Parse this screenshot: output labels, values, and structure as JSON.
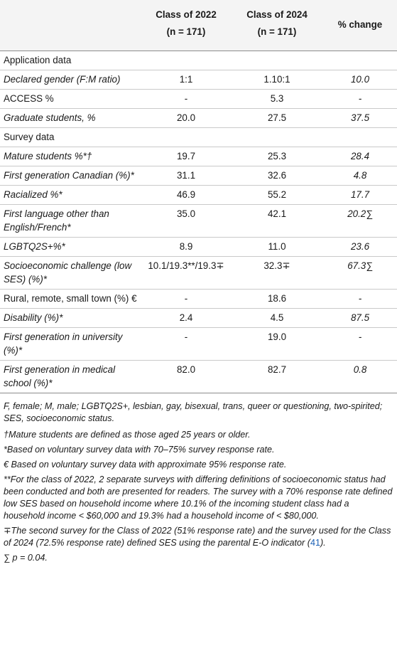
{
  "header": {
    "col1": "",
    "col2_title": "Class of 2022",
    "col2_n": "(n = 171)",
    "col3_title": "Class of 2024",
    "col3_n": "(n = 171)",
    "col4_title": "% change"
  },
  "rows": [
    {
      "label": "Application data",
      "italic": false,
      "v1": "",
      "v2": "",
      "v3": ""
    },
    {
      "label": "Declared gender (F:M ratio)",
      "italic": true,
      "v1": "1:1",
      "v2": "1.10:1",
      "v3": "10.0"
    },
    {
      "label": "ACCESS %",
      "italic": false,
      "v1": "-",
      "v2": "5.3",
      "v3": "-"
    },
    {
      "label": "Graduate students, %",
      "italic": true,
      "v1": "20.0",
      "v2": "27.5",
      "v3": "37.5"
    },
    {
      "label": "Survey data",
      "italic": false,
      "v1": "",
      "v2": "",
      "v3": ""
    },
    {
      "label": "Mature students %*†",
      "italic": true,
      "v1": "19.7",
      "v2": "25.3",
      "v3": "28.4"
    },
    {
      "label": "First generation Canadian (%)*",
      "italic": true,
      "v1": "31.1",
      "v2": "32.6",
      "v3": "4.8"
    },
    {
      "label": "Racialized %*",
      "italic": true,
      "v1": "46.9",
      "v2": "55.2",
      "v3": "17.7"
    },
    {
      "label": "First language other than English/French*",
      "italic": true,
      "v1": "35.0",
      "v2": "42.1",
      "v3": "20.2∑"
    },
    {
      "label": "LGBTQ2S+%*",
      "italic": true,
      "v1": "8.9",
      "v2": "11.0",
      "v3": "23.6"
    },
    {
      "label": "Socioeconomic challenge (low SES) (%)*",
      "italic": true,
      "v1": "10.1/19.3**/19.3∓",
      "v2": "32.3∓",
      "v3": "67.3∑"
    },
    {
      "label": "Rural, remote, small town (%) €",
      "italic": false,
      "v1": "-",
      "v2": "18.6",
      "v3": "-"
    },
    {
      "label": "Disability (%)*",
      "italic": true,
      "v1": "2.4",
      "v2": "4.5",
      "v3": "87.5"
    },
    {
      "label": "First generation in university (%)*",
      "italic": true,
      "v1": "-",
      "v2": "19.0",
      "v3": "-"
    },
    {
      "label": "First generation in medical school (%)*",
      "italic": true,
      "v1": "82.0",
      "v2": "82.7",
      "v3": "0.8"
    }
  ],
  "notes": {
    "abbrev": "F, female; M, male; LGBTQ2S+, lesbian, gay, bisexual, trans, queer or questioning, two-spirited; SES, socioeconomic status.",
    "dagger": "†Mature students are defined as those aged 25 years or older.",
    "star": "*Based on voluntary survey data with 70–75% survey response rate.",
    "euro": "€ Based on voluntary survey data with approximate 95% response rate.",
    "dstar": "**For the class of 2022, 2 separate surveys with differing definitions of socioeconomic status had been conducted and both are presented for readers. The survey with a 70% response rate defined low SES based on household income where 10.1% of the incoming student class had a household income < $60,000 and 19.3% had a household income of < $80,000.",
    "mp_before": "∓The second survey for the Class of 2022 (51% response rate) and the survey used for the Class of 2024 (72.5% response rate) defined SES using the parental E-O indicator (",
    "mp_ref": "41",
    "mp_after": ").",
    "sigma": "∑ p = 0.04."
  }
}
